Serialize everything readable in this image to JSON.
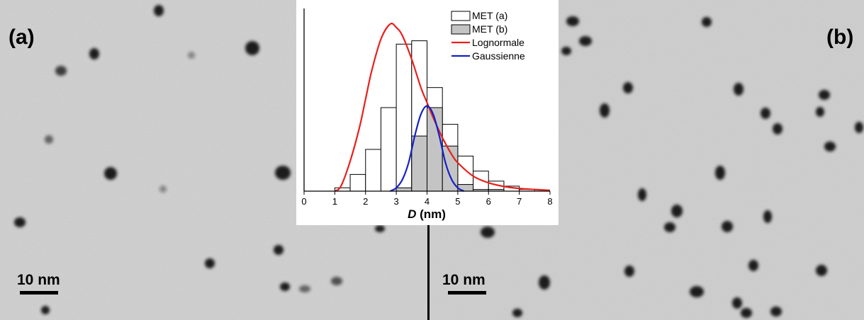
{
  "panels": {
    "left": {
      "label": "(a)",
      "scale_text": "10 nm"
    },
    "right": {
      "label": "(b)",
      "scale_text": "10 nm"
    }
  },
  "chart_data": {
    "type": "bar",
    "title": "",
    "xlabel": {
      "italic": "D",
      "unit": " (nm)"
    },
    "ylabel": "",
    "xlim": [
      0,
      8
    ],
    "ylim": [
      0,
      100
    ],
    "xticks": [
      0,
      1,
      2,
      3,
      4,
      5,
      6,
      7,
      8
    ],
    "bin_width": 0.5,
    "grid": false,
    "legend_position": "top-right",
    "series": [
      {
        "name": "MET (a)",
        "kind": "histogram",
        "fill": "#ffffff",
        "bin_starts": [
          1.0,
          1.5,
          2.0,
          2.5,
          3.0,
          3.5,
          4.0,
          4.5,
          5.0,
          5.5,
          6.0,
          6.5,
          7.0
        ],
        "values": [
          2,
          10,
          25,
          50,
          88,
          90,
          62,
          40,
          21,
          12,
          6,
          3,
          1
        ]
      },
      {
        "name": "MET (b)",
        "kind": "histogram",
        "fill": "#c4c4c4",
        "bin_starts": [
          3.0,
          3.5,
          4.0,
          4.5,
          5.0,
          5.5,
          6.0
        ],
        "values": [
          2,
          33,
          50,
          27,
          4,
          1,
          1
        ]
      },
      {
        "name": "Lognormale",
        "kind": "curve",
        "color": "#e8201c",
        "x": [
          1.0,
          1.2,
          1.5,
          1.8,
          2.0,
          2.2,
          2.5,
          2.8,
          3.0,
          3.2,
          3.5,
          3.8,
          4.0,
          4.2,
          4.5,
          4.8,
          5.0,
          5.5,
          6.0,
          6.5,
          7.0,
          7.5,
          8.0
        ],
        "y": [
          0,
          3,
          18,
          38,
          55,
          72,
          91,
          100,
          98,
          93,
          79,
          62,
          53,
          44,
          32,
          22,
          17,
          9,
          5,
          2.8,
          1.6,
          1,
          0.5
        ]
      },
      {
        "name": "Gaussienne",
        "kind": "curve",
        "color": "#1520c8",
        "x": [
          2.8,
          3.0,
          3.2,
          3.4,
          3.6,
          3.8,
          4.0,
          4.2,
          4.4,
          4.6,
          4.8,
          5.0,
          5.2
        ],
        "y": [
          0,
          2,
          7,
          17,
          33,
          46,
          51,
          46,
          33,
          17,
          7,
          2,
          0
        ]
      }
    ]
  }
}
